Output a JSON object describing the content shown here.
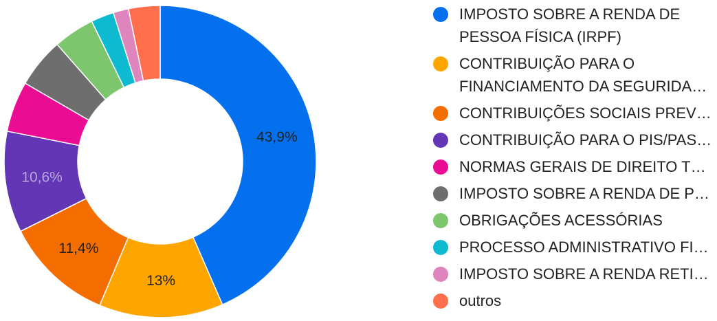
{
  "chart_data": {
    "type": "pie",
    "style": "donut",
    "legend_position": "right",
    "series": [
      {
        "name": "IMPOSTO SOBRE A RENDA DE PESSOA FÍSICA (IRPF)",
        "value": 43.9,
        "label": "43,9%",
        "color": "#0470ED",
        "label_color": "#222222"
      },
      {
        "name": "CONTRIBUIÇÃO PARA O FINANCIAMENTO DA SEGURIDADE SOCIAL",
        "value": 13.0,
        "label": "13%",
        "color": "#FFA500",
        "label_color": "#222222"
      },
      {
        "name": "CONTRIBUIÇÕES SOCIAIS PREVIDENCIÁRIAS",
        "value": 11.4,
        "label": "11,4%",
        "color": "#F46D00",
        "label_color": "#222222"
      },
      {
        "name": "CONTRIBUIÇÃO PARA O PIS/PASEP",
        "value": 10.6,
        "label": "10,6%",
        "color": "#6236B4",
        "label_color": "#B7A8DE"
      },
      {
        "name": "NORMAS GERAIS DE DIREITO TRIBUTÁRIO",
        "value": 5.3,
        "label": "",
        "color": "#EB0C94",
        "label_color": "#222222"
      },
      {
        "name": "IMPOSTO SOBRE A RENDA DE PESSOA JURÍDICA",
        "value": 5.2,
        "label": "",
        "color": "#6E6E6E",
        "label_color": "#222222"
      },
      {
        "name": "OBRIGAÇÕES ACESSÓRIAS",
        "value": 4.3,
        "label": "",
        "color": "#7DC66E",
        "label_color": "#222222"
      },
      {
        "name": "PROCESSO ADMINISTRATIVO FISCAL",
        "value": 2.4,
        "label": "",
        "color": "#0DBAD0",
        "label_color": "#222222"
      },
      {
        "name": "IMPOSTO SOBRE A RENDA RETIDO NA FONTE",
        "value": 1.6,
        "label": "",
        "color": "#DE85BE",
        "label_color": "#222222"
      },
      {
        "name": "outros",
        "value": 3.3,
        "label": "",
        "color": "#FF6F4C",
        "label_color": "#222222"
      }
    ],
    "legend": [
      {
        "text": "IMPOSTO SOBRE A RENDA DE PESSOA FÍSICA (IRPF)",
        "lines": 2
      },
      {
        "text": "CONTRIBUIÇÃO PARA O FINANCIAMENTO DA SEGURIDADE SOCIAL",
        "lines": 2
      },
      {
        "text": "CONTRIBUIÇÕES SOCIAIS PREVIDENCIÁRIAS",
        "lines": 1
      },
      {
        "text": "CONTRIBUIÇÃO PARA O PIS/PASEP",
        "lines": 1
      },
      {
        "text": "NORMAS GERAIS DE DIREITO TRIBUTÁRIO",
        "lines": 1
      },
      {
        "text": "IMPOSTO SOBRE A RENDA DE PESSOA JURÍDICA",
        "lines": 1
      },
      {
        "text": "OBRIGAÇÕES ACESSÓRIAS",
        "lines": 1
      },
      {
        "text": "PROCESSO ADMINISTRATIVO FISCAL",
        "lines": 1
      },
      {
        "text": "IMPOSTO SOBRE A RENDA RETIDO NA FONTE",
        "lines": 1
      },
      {
        "text": "outros",
        "lines": 1
      }
    ]
  }
}
